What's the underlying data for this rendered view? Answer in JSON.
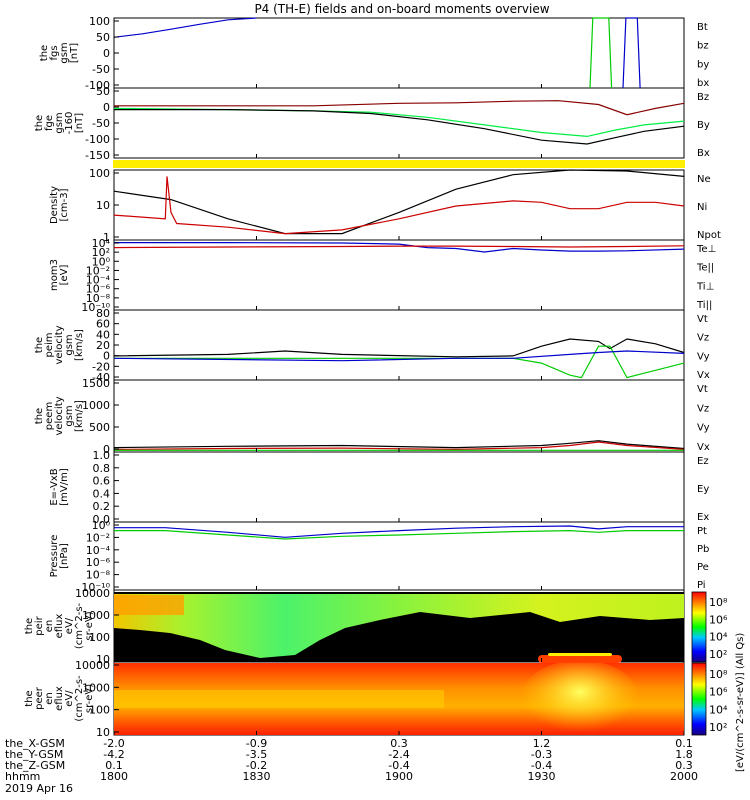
{
  "title": "P4 (TH-E) fields and on-board moments overview",
  "chart_data": [
    {
      "type": "line",
      "ylabel": [
        "the",
        "fgs",
        "gsm",
        "[nT]"
      ],
      "ytick_labels": [
        "100",
        "50",
        "0",
        "-50",
        "-100"
      ],
      "ylim": [
        -100,
        100
      ],
      "legend": [
        "Bt",
        "bz",
        "by",
        "bx"
      ],
      "colors": [
        "#000000",
        "#cc0000",
        "#00cc00",
        "#0000cc"
      ],
      "series": [
        {
          "name": "bx",
          "x": [
            0,
            5,
            10,
            15,
            20,
            25
          ],
          "y": [
            45,
            55,
            68,
            82,
            95,
            112
          ]
        },
        {
          "name": "by",
          "x": [
            83.5,
            84,
            86.8,
            87.3
          ],
          "y": [
            -110,
            110,
            110,
            -110
          ]
        },
        {
          "name": "bx",
          "x": [
            89.3,
            89.8,
            91.8,
            92.3
          ],
          "y": [
            -110,
            110,
            110,
            -110
          ]
        }
      ]
    },
    {
      "type": "line",
      "ylabel": [
        "the",
        "fge",
        "gsm",
        "-160",
        "[nT]"
      ],
      "ytick_labels": [
        "50",
        "0",
        "-50",
        "-100",
        "-150"
      ],
      "ylim": [
        -185,
        90
      ],
      "legend": [
        "Bz",
        "By",
        "Bx"
      ],
      "colors": [
        "#880000",
        "#00ee44",
        "#000000"
      ],
      "series": [
        {
          "name": "Bz",
          "x": [
            0,
            20,
            35,
            50,
            60,
            70,
            78,
            85,
            90,
            95,
            100
          ],
          "y": [
            20,
            20,
            20,
            30,
            32,
            38,
            40,
            25,
            -15,
            10,
            30
          ]
        },
        {
          "name": "By",
          "x": [
            0,
            20,
            35,
            45,
            55,
            65,
            75,
            83,
            88,
            93,
            100
          ],
          "y": [
            10,
            5,
            0,
            -5,
            -25,
            -55,
            -85,
            -100,
            -75,
            -55,
            -40
          ]
        },
        {
          "name": "Bx",
          "x": [
            0,
            20,
            35,
            45,
            55,
            65,
            75,
            83,
            88,
            93,
            100
          ],
          "y": [
            5,
            5,
            0,
            -10,
            -35,
            -70,
            -115,
            -130,
            -105,
            -80,
            -60
          ]
        }
      ]
    },
    {
      "type": "line",
      "ylabel": [
        "Density",
        "[cm-3]"
      ],
      "ytick_labels": [
        "100",
        "10",
        "1"
      ],
      "ylim": [
        0.1,
        200
      ],
      "yscale": "log",
      "legend": [
        "Ne",
        "Ni",
        "Npot"
      ],
      "colors": [
        "#cc0000",
        "#000000",
        "#0000cc"
      ],
      "series": [
        {
          "name": "Ni",
          "x": [
            0,
            10,
            20,
            30,
            40,
            50,
            60,
            70,
            80,
            90,
            100
          ],
          "y": [
            20,
            8,
            1,
            0.2,
            0.2,
            2,
            25,
            120,
            200,
            180,
            100
          ]
        },
        {
          "name": "Ne",
          "x": [
            0,
            9,
            9.3,
            10,
            11,
            20,
            30,
            40,
            50,
            60,
            70,
            75,
            80,
            85,
            90,
            95,
            100
          ],
          "y": [
            1.5,
            1,
            100,
            2,
            0.6,
            0.4,
            0.2,
            0.3,
            1,
            4,
            7,
            6,
            3,
            3,
            6,
            6,
            4
          ]
        }
      ]
    },
    {
      "type": "line",
      "ylabel": [
        "mom3",
        "[eV]"
      ],
      "ytick_labels": [
        "10⁴",
        "10²",
        "10⁰",
        "10⁻²",
        "10⁻⁴",
        "10⁻⁶",
        "10⁻⁸",
        "10⁻¹⁰"
      ],
      "ylim": [
        1e-10,
        10000.0
      ],
      "yscale": "log",
      "legend": [
        "Te⊥",
        "Te||",
        "Ti⊥",
        "Ti||"
      ],
      "colors": [
        "#cc0000",
        "#000000",
        "#0000cc",
        "#00cc00"
      ],
      "series": [
        {
          "name": "Ti⊥",
          "x": [
            0,
            20,
            40,
            50,
            55,
            60,
            65,
            70,
            75,
            80,
            85,
            90,
            100
          ],
          "y": [
            3000,
            3000,
            2500,
            1500,
            300,
            200,
            40,
            200,
            100,
            60,
            60,
            70,
            150
          ]
        },
        {
          "name": "Te⊥",
          "x": [
            0,
            20,
            40,
            50,
            60,
            70,
            80,
            90,
            100
          ],
          "y": [
            300,
            400,
            500,
            600,
            600,
            500,
            400,
            500,
            700
          ]
        }
      ]
    },
    {
      "type": "line",
      "ylabel": [
        "the",
        "peim",
        "velocity",
        "gsm",
        "[km/s]"
      ],
      "ytick_labels": [
        "80",
        "60",
        "40",
        "20",
        "0",
        "-20",
        "-40"
      ],
      "ylim": [
        -45,
        100
      ],
      "legend": [
        "Vt",
        "Vz",
        "Vy",
        "Vx"
      ],
      "colors": [
        "#000000",
        "#cc0000",
        "#00cc00",
        "#0000cc"
      ],
      "series": [
        {
          "name": "Vt",
          "x": [
            0,
            20,
            30,
            40,
            60,
            70,
            75,
            80,
            85,
            87,
            90,
            95,
            100
          ],
          "y": [
            5,
            8,
            15,
            8,
            3,
            5,
            25,
            40,
            35,
            20,
            40,
            30,
            12
          ]
        },
        {
          "name": "Vy",
          "x": [
            0,
            40,
            60,
            70,
            75,
            80,
            82,
            85,
            87,
            90,
            95,
            100
          ],
          "y": [
            0,
            0,
            0,
            0,
            -10,
            -35,
            -40,
            25,
            25,
            -40,
            -25,
            -10
          ]
        },
        {
          "name": "Vx",
          "x": [
            0,
            40,
            60,
            70,
            80,
            85,
            90,
            100
          ],
          "y": [
            0,
            -5,
            0,
            0,
            8,
            12,
            15,
            10
          ]
        }
      ]
    },
    {
      "type": "line",
      "ylabel": [
        "the",
        "peem",
        "velocity",
        "gsm",
        "[km/s]"
      ],
      "ytick_labels": [
        "1500",
        "1000",
        "500",
        "0"
      ],
      "ylim": [
        0,
        1650
      ],
      "legend": [
        "Vt",
        "Vz",
        "Vy",
        "Vx"
      ],
      "colors": [
        "#000000",
        "#cc0000",
        "#00cc00",
        "#0000cc"
      ],
      "series": [
        {
          "name": "Vt",
          "x": [
            0,
            20,
            40,
            60,
            75,
            80,
            85,
            90,
            100
          ],
          "y": [
            100,
            130,
            150,
            100,
            150,
            200,
            260,
            180,
            80
          ]
        },
        {
          "name": "Vz",
          "x": [
            0,
            20,
            40,
            60,
            75,
            80,
            85,
            90,
            100
          ],
          "y": [
            60,
            80,
            90,
            60,
            100,
            150,
            230,
            150,
            60
          ]
        },
        {
          "name": "Vy",
          "x": [
            0,
            50,
            100
          ],
          "y": [
            40,
            40,
            40
          ]
        }
      ]
    },
    {
      "type": "line",
      "ylabel": [
        "E=-VxB",
        "[mV/m]"
      ],
      "ytick_labels": [
        "1.0",
        "0.8",
        "0.6",
        "0.4",
        "0.2",
        "0.0"
      ],
      "ylim": [
        0,
        1.05
      ],
      "legend": [
        "Ez",
        "Ey",
        "Ex"
      ],
      "colors": [
        "#cc0000",
        "#00cc00",
        "#0000cc"
      ],
      "series": []
    },
    {
      "type": "line",
      "ylabel": [
        "Pressure",
        "[nPa]"
      ],
      "ytick_labels": [
        "10⁰",
        "10⁻²",
        "10⁻⁴",
        "10⁻⁶",
        "10⁻⁸",
        "10⁻¹⁰"
      ],
      "ylim": [
        1e-11,
        10
      ],
      "yscale": "log",
      "legend": [
        "Pt",
        "Pb",
        "Pe",
        "Pi"
      ],
      "colors": [
        "#000000",
        "#cc0000",
        "#00cc00",
        "#0000cc"
      ],
      "series": [
        {
          "name": "Pi",
          "x": [
            0,
            9,
            20,
            30,
            40,
            50,
            60,
            70,
            80,
            85,
            90,
            100
          ],
          "y": [
            1,
            1,
            0.15,
            0.02,
            0.1,
            0.3,
            0.8,
            1.5,
            2,
            0.6,
            1.5,
            1.5
          ]
        },
        {
          "name": "Pe",
          "x": [
            0,
            9,
            20,
            30,
            40,
            50,
            60,
            70,
            80,
            85,
            90,
            100
          ],
          "y": [
            0.3,
            0.3,
            0.05,
            0.01,
            0.03,
            0.05,
            0.1,
            0.2,
            0.3,
            0.15,
            0.3,
            0.3
          ]
        }
      ]
    },
    {
      "type": "heatmap",
      "ylabel": [
        "the",
        "peir",
        "en",
        "eflux",
        "eV/",
        "(cm^2-s-",
        "sr-eV)"
      ],
      "ytick_labels": [
        "10000",
        "1000",
        "100",
        "10"
      ],
      "ylim": [
        5,
        30000
      ],
      "yscale": "log"
    },
    {
      "type": "heatmap",
      "ylabel": [
        "the",
        "peer",
        "en",
        "eflux",
        "eV/",
        "(cm^2-s-",
        "sr-eV)"
      ],
      "ytick_labels": [
        "10000",
        "1000",
        "100",
        "10"
      ],
      "ylim": [
        5,
        30000
      ],
      "yscale": "log"
    }
  ],
  "colorbars": [
    {
      "tick_labels": [
        "10⁸",
        "10⁶",
        "10⁴",
        "10²"
      ],
      "label": "[eV/(cm^2-s-sr-eV)] (All Qs)"
    },
    {
      "tick_labels": [
        "10⁸",
        "10⁶",
        "10⁴",
        "10²"
      ],
      "label": "[eV/(cm^2-s-sr-eV)]"
    }
  ],
  "xaxis": {
    "row_labels": [
      "the_X-GSM",
      "the_Y-GSM",
      "the_Z-GSM",
      "hhmm",
      "2019 Apr 16"
    ],
    "columns": [
      [
        "-2.0",
        "-4.2",
        "0.1",
        "1800"
      ],
      [
        "-0.9",
        "-3.5",
        "-0.2",
        "1830"
      ],
      [
        "0.3",
        "-2.4",
        "-0.4",
        "1900"
      ],
      [
        "1.2",
        "-0.3",
        "-0.4",
        "1930"
      ],
      [
        "0.1",
        "1.8",
        "0.3",
        "2000"
      ]
    ]
  }
}
